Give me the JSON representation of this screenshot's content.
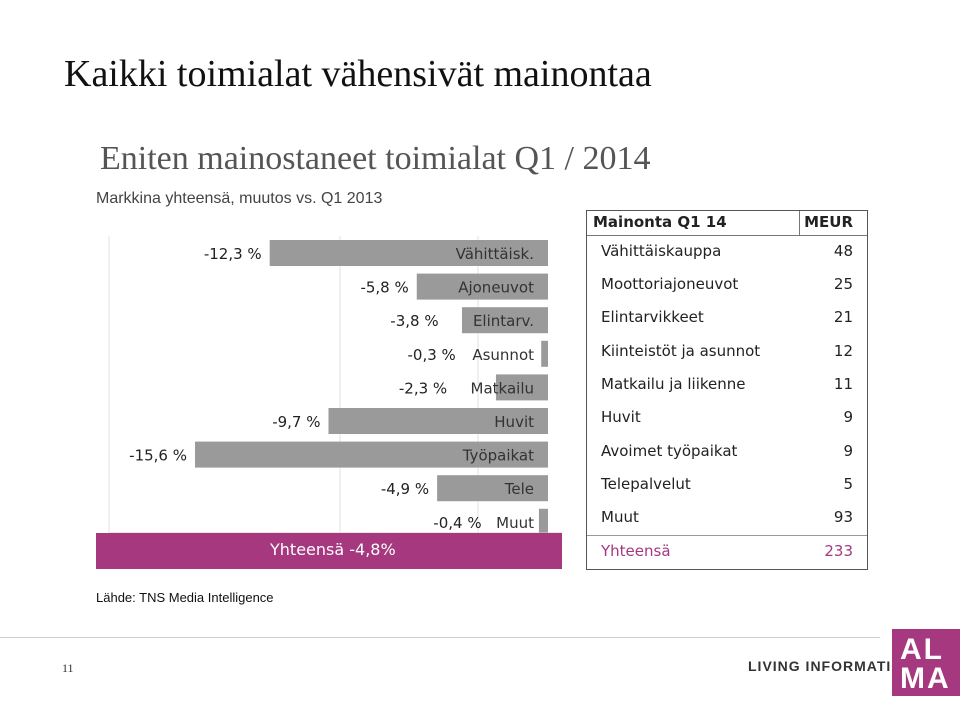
{
  "page": {
    "title": "Kaikki toimialat vähensivät mainontaa",
    "subtitle": "Eniten mainostaneet toimialat Q1 / 2014",
    "market_note": "Markkina yhteensä, muutos vs. Q1 2013",
    "total_label": "Yhteensä -4,8%",
    "source": "Lähde: TNS Media Intelligence",
    "page_number": "11",
    "tagline": "LIVING INFORMATION",
    "logo_line1": "AL",
    "logo_line2": "MA",
    "accent_color": "#a5387f",
    "bar_color": "#9a9a9a"
  },
  "chart_data": {
    "type": "bar",
    "orientation": "horizontal",
    "categories": [
      "Vähittäisk.",
      "Ajoneuvot",
      "Elintarv.",
      "Asunnot",
      "Matkailu",
      "Huvit",
      "Työpaikat",
      "Tele",
      "Muut"
    ],
    "values": [
      -12.3,
      -5.8,
      -3.8,
      -0.3,
      -2.3,
      -9.7,
      -15.6,
      -4.9,
      -0.4
    ],
    "value_labels": [
      "-12,3 %",
      "-5,8 %",
      "-3,8 %",
      "-0,3 %",
      "-2,3 %",
      "-9,7 %",
      "-15,6 %",
      "-4,9 %",
      "-0,4 %"
    ],
    "xlim": [
      -15.6,
      0
    ],
    "total_change": -4.8,
    "total_label": "Yhteensä -4,8%"
  },
  "table": {
    "header": "Mainonta Q1 14",
    "unit": "MEUR",
    "rows": [
      {
        "name": "Vähittäiskauppa",
        "value": "48"
      },
      {
        "name": "Moottoriajoneuvot",
        "value": "25"
      },
      {
        "name": "Elintarvikkeet",
        "value": "21"
      },
      {
        "name": "Kiinteistöt ja asunnot",
        "value": "12"
      },
      {
        "name": "Matkailu ja liikenne",
        "value": "11"
      },
      {
        "name": "Huvit",
        "value": "9"
      },
      {
        "name": "Avoimet työpaikat",
        "value": "9"
      },
      {
        "name": "Telepalvelut",
        "value": "5"
      },
      {
        "name": "Muut",
        "value": "93"
      }
    ],
    "total_name": "Yhteensä",
    "total_value": "233"
  }
}
